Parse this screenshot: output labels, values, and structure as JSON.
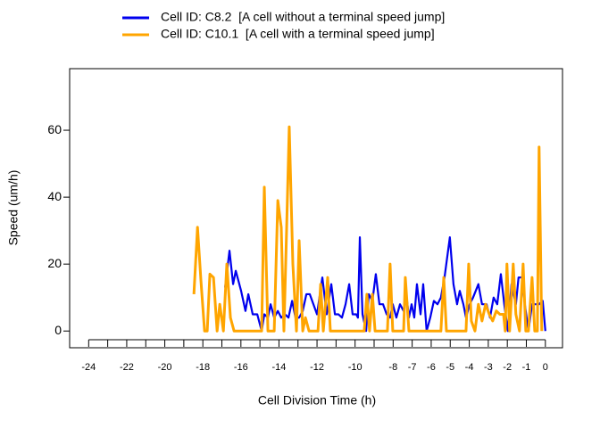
{
  "chart_data": {
    "type": "line",
    "xlabel": "Cell Division Time (h)",
    "ylabel": "Speed (um/h)",
    "xlim": [
      -25,
      0.9
    ],
    "ylim": [
      -5,
      78.4
    ],
    "xticks": [
      -24,
      -22,
      -20,
      -18,
      -16,
      -14,
      -12,
      -10,
      -8,
      -7,
      -6,
      -5,
      -4,
      -3,
      -2,
      -1,
      0
    ],
    "xminor_ticks": [
      -23,
      -21,
      -19,
      -17,
      -15,
      -13,
      -11,
      -9
    ],
    "yticks": [
      0,
      20,
      40,
      60
    ],
    "legend": "top",
    "series": [
      {
        "name": "Cell ID: C8.2  [A cell without a terminal speed jump]",
        "color": "#0000ee",
        "x": [
          -16.83,
          -16.6,
          -16.41,
          -16.27,
          -15.99,
          -15.76,
          -15.61,
          -15.38,
          -15.14,
          -14.91,
          -14.77,
          -14.58,
          -14.44,
          -14.25,
          -14.06,
          -13.88,
          -13.69,
          -13.5,
          -13.31,
          -13.13,
          -12.94,
          -12.75,
          -12.56,
          -12.38,
          -12.19,
          -12.0,
          -11.72,
          -11.49,
          -11.25,
          -11.06,
          -10.88,
          -10.69,
          -10.5,
          -10.31,
          -10.13,
          -9.94,
          -9.85,
          -9.75,
          -9.61,
          -9.42,
          -9.28,
          -9.09,
          -8.91,
          -8.72,
          -8.53,
          -8.34,
          -8.16,
          -8.02,
          -7.83,
          -7.64,
          -7.45,
          -7.31,
          -7.17,
          -7.03,
          -6.89,
          -6.75,
          -6.56,
          -6.42,
          -6.24,
          -6.05,
          -5.86,
          -5.67,
          -5.49,
          -5.3,
          -5.02,
          -4.83,
          -4.64,
          -4.5,
          -4.31,
          -4.17,
          -3.98,
          -3.8,
          -3.52,
          -3.33,
          -3.09,
          -2.91,
          -2.72,
          -2.53,
          -2.34,
          -2.16,
          -1.97,
          -1.78,
          -1.55,
          -1.41,
          -1.22,
          -1.08,
          -0.89,
          -0.7,
          -0.52,
          -0.33,
          -0.14,
          0
        ],
        "values": [
          13,
          24,
          14,
          18,
          12,
          6,
          11,
          5,
          5,
          0,
          5,
          4,
          8,
          4,
          6,
          4,
          5,
          4,
          9,
          4,
          4,
          6,
          11,
          11,
          8,
          5,
          16,
          5,
          14,
          5,
          5,
          4,
          8,
          14,
          5,
          5,
          4,
          28,
          5,
          0,
          11,
          9,
          17,
          8,
          8,
          5,
          4,
          8,
          4,
          8,
          6,
          11,
          4,
          8,
          4,
          14,
          5,
          14,
          0,
          4,
          9,
          8,
          10,
          16,
          28,
          14,
          8,
          12,
          8,
          4,
          8,
          10,
          14,
          8,
          8,
          4,
          10,
          8,
          17,
          8,
          0,
          14,
          8,
          16,
          16,
          8,
          0,
          8,
          8,
          8,
          9,
          0
        ]
      },
      {
        "name": "Cell ID: C10.1  [A cell with a terminal speed jump]",
        "color": "#ffa500",
        "x": [
          -18.47,
          -18.28,
          -18.1,
          -17.91,
          -17.77,
          -17.63,
          -17.44,
          -17.25,
          -17.11,
          -16.92,
          -16.74,
          -16.55,
          -16.36,
          -14.91,
          -14.77,
          -14.58,
          -14.25,
          -14.06,
          -13.88,
          -13.74,
          -13.6,
          -13.46,
          -13.27,
          -13.08,
          -12.94,
          -12.75,
          -12.61,
          -12.42,
          -11.95,
          -11.81,
          -11.67,
          -11.44,
          -11.3,
          -9.52,
          -9.38,
          -9.24,
          -9.09,
          -8.95,
          -8.3,
          -8.16,
          -8.02,
          -7.45,
          -7.36,
          -7.17,
          -5.49,
          -5.34,
          -5.2,
          -4.17,
          -4.03,
          -3.89,
          -3.7,
          -3.52,
          -3.33,
          -3.14,
          -2.95,
          -2.77,
          -2.58,
          -2.39,
          -2.2,
          -2.11,
          -2.02,
          -1.88,
          -1.69,
          -1.55,
          -1.36,
          -1.17,
          -1.03,
          -0.89,
          -0.7,
          -0.56,
          -0.42,
          -0.33,
          -0.19
        ],
        "values": [
          11,
          31,
          15,
          0,
          0,
          17,
          16,
          0,
          8,
          0,
          20,
          4,
          0,
          0,
          43,
          0,
          0,
          39,
          31,
          0,
          30,
          61,
          20,
          0,
          27,
          0,
          4,
          0,
          0,
          14,
          0,
          16,
          0,
          0,
          11,
          0,
          11,
          0,
          0,
          20,
          0,
          0,
          16,
          0,
          0,
          16,
          0,
          0,
          20,
          3,
          0,
          8,
          3,
          8,
          5,
          3,
          6,
          5,
          5,
          0,
          20,
          0,
          20,
          5,
          0,
          20,
          0,
          0,
          16,
          0,
          0,
          55,
          0
        ]
      }
    ]
  }
}
